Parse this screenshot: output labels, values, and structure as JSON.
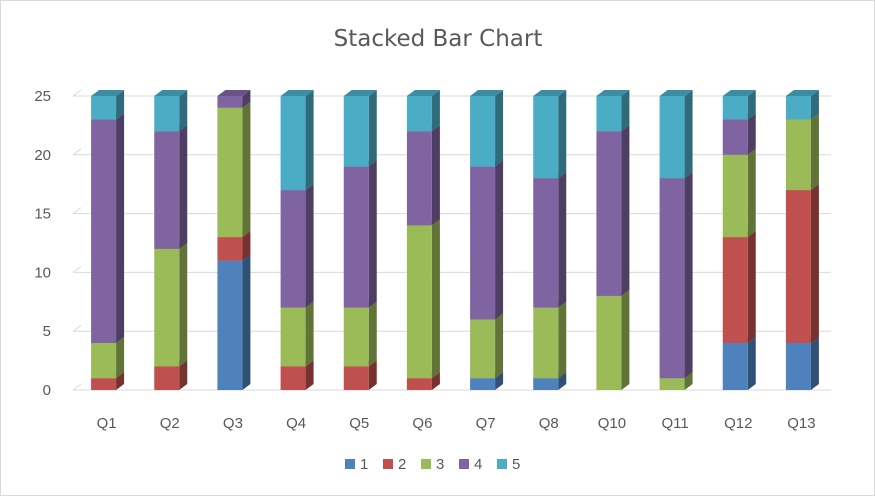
{
  "chart_data": {
    "type": "bar",
    "stacked": true,
    "three_d": true,
    "title": "Stacked Bar Chart",
    "xlabel": "",
    "ylabel": "",
    "categories": [
      "Q1",
      "Q2",
      "Q3",
      "Q4",
      "Q5",
      "Q6",
      "Q7",
      "Q8",
      "Q10",
      "Q11",
      "Q12",
      "Q13"
    ],
    "ylim": [
      0,
      25
    ],
    "yticks": [
      "0",
      "5",
      "10",
      "15",
      "20",
      "25"
    ],
    "grid": true,
    "legend_position": "bottom",
    "series": [
      {
        "name": "1",
        "color": "#4f81bd",
        "values": [
          0,
          0,
          11,
          0,
          0,
          0,
          1,
          1,
          0,
          0,
          4,
          4
        ]
      },
      {
        "name": "2",
        "color": "#c0504d",
        "values": [
          1,
          2,
          2,
          2,
          2,
          1,
          0,
          0,
          0,
          0,
          9,
          13
        ]
      },
      {
        "name": "3",
        "color": "#9bbb59",
        "values": [
          3,
          10,
          11,
          5,
          5,
          13,
          5,
          6,
          8,
          1,
          7,
          6
        ]
      },
      {
        "name": "4",
        "color": "#8064a2",
        "values": [
          19,
          10,
          1,
          10,
          12,
          8,
          13,
          11,
          14,
          17,
          3,
          0
        ]
      },
      {
        "name": "5",
        "color": "#4bacc6",
        "values": [
          2,
          3,
          0,
          8,
          6,
          3,
          6,
          7,
          3,
          7,
          2,
          2
        ]
      }
    ]
  }
}
